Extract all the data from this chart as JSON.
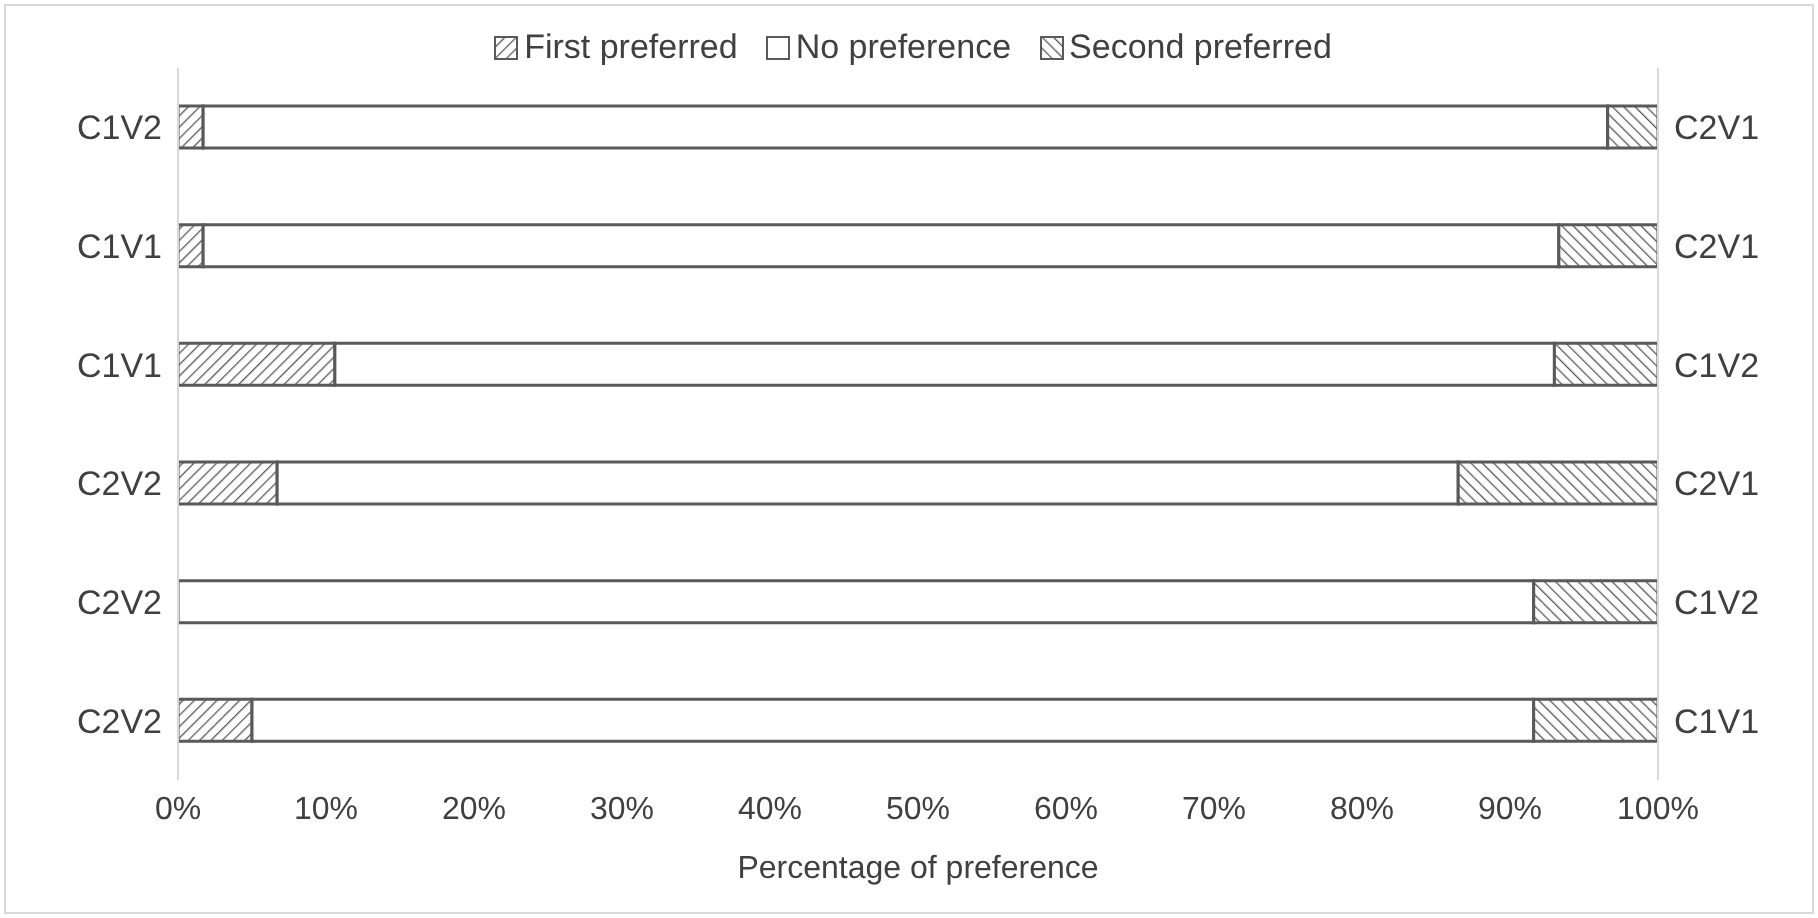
{
  "chart_data": {
    "type": "bar",
    "orientation": "horizontal",
    "stacked": true,
    "xlabel": "Percentage of preference",
    "categories": [
      "C1V2",
      "C1V1",
      "C1V1",
      "C2V2",
      "C2V2",
      "C2V2"
    ],
    "y2_categories": [
      "C2V1",
      "C2V1",
      "C1V2",
      "C2V1",
      "C1V2",
      "C1V1"
    ],
    "series": [
      {
        "name": "First preferred",
        "color": "#595959",
        "values": [
          1.7,
          1.7,
          10.6,
          6.7,
          0,
          5.0
        ]
      },
      {
        "name": "No preference",
        "color": "#ffffff",
        "values": [
          94.9,
          91.6,
          82.4,
          79.8,
          91.6,
          86.6
        ]
      },
      {
        "name": "Second preferred",
        "color": "#595959",
        "values": [
          3.4,
          6.7,
          7.0,
          13.5,
          8.4,
          8.4
        ]
      }
    ],
    "xlim": [
      0,
      100
    ],
    "xticks": [
      {
        "value": 0,
        "label": "0%"
      },
      {
        "value": 10,
        "label": "10%"
      },
      {
        "value": 20,
        "label": "20%"
      },
      {
        "value": 30,
        "label": "30%"
      },
      {
        "value": 40,
        "label": "40%"
      },
      {
        "value": 50,
        "label": "50%"
      },
      {
        "value": 60,
        "label": "60%"
      },
      {
        "value": 70,
        "label": "70%"
      },
      {
        "value": 80,
        "label": "80%"
      },
      {
        "value": 90,
        "label": "90%"
      },
      {
        "value": 100,
        "label": "100%"
      }
    ],
    "grid": false,
    "legend": "top"
  }
}
